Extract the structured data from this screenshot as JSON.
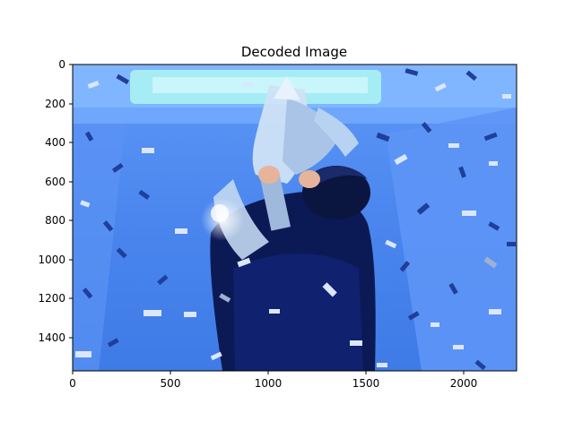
{
  "figure": {
    "title": "Decoded Image",
    "x_ticks": [
      0,
      500,
      1000,
      1500,
      2000
    ],
    "y_ticks": [
      0,
      200,
      400,
      600,
      800,
      1000,
      1200,
      1400
    ],
    "x_extent": [
      0,
      2270
    ],
    "y_extent": [
      0,
      1570
    ]
  },
  "image": {
    "description_colors": {
      "background_blue": "#4a86ee",
      "light_blue": "#7fb6ff",
      "stage_cyan": "#9fe6f3",
      "dark_navy": "#0b1a55",
      "silver": "#cfe2f5",
      "confetti_light": "#dbe7ff",
      "confetti_dark": "#1f3f9a"
    }
  }
}
